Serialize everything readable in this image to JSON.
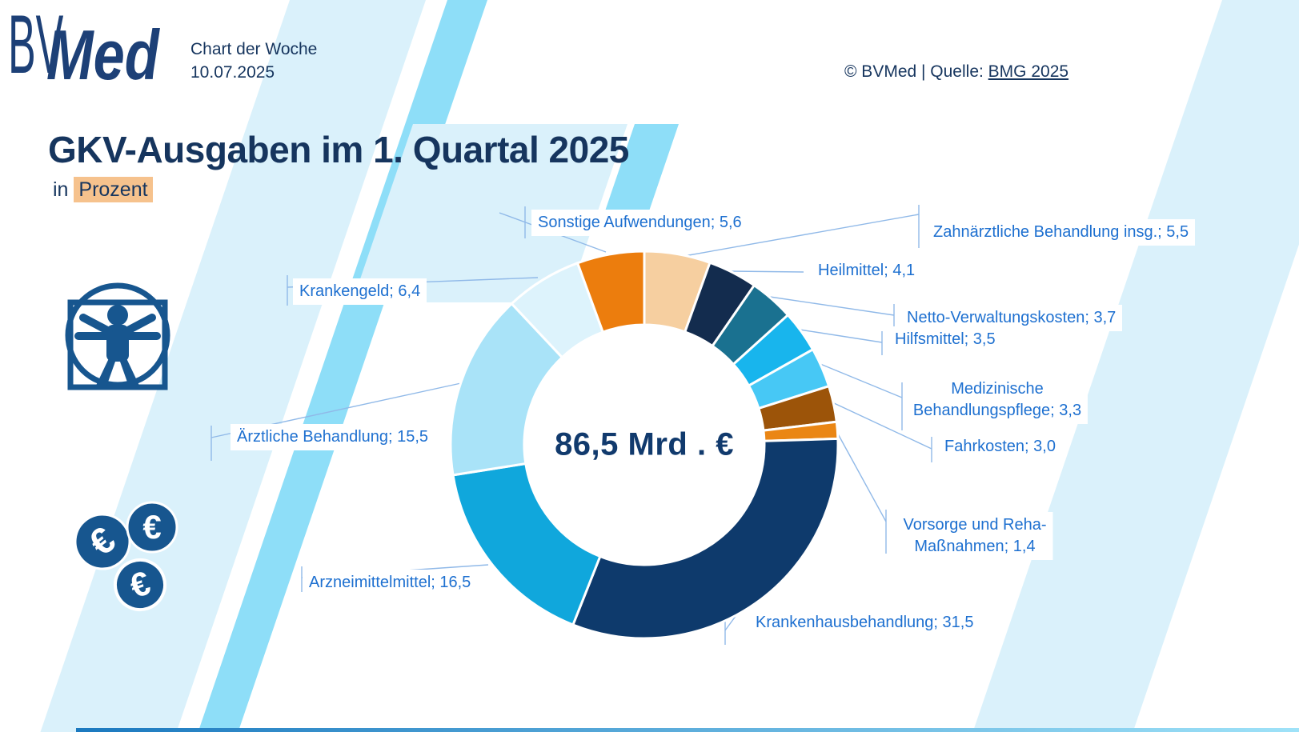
{
  "header": {
    "logo_bv": "BV",
    "logo_med": "Med",
    "tagline": "Chart der Woche",
    "date": "10.07.2025",
    "source_prefix": "© BVMed | Quelle: ",
    "source_link": "BMG 2025"
  },
  "title": "GKV-Ausgaben im 1. Quartal 2025",
  "subtitle_prefix": "in ",
  "subtitle_highlight": "Prozent",
  "chart_data": {
    "type": "pie",
    "donut": true,
    "title": "GKV-Ausgaben im 1. Quartal 2025",
    "unit": "Prozent",
    "center_label": "86,5 Mrd . €",
    "start_angle_deg": 0,
    "direction": "clockwise",
    "total": 100.0,
    "segments": [
      {
        "id": "zahnaerztliche",
        "name": "Zahnärztliche Behandlung insg.",
        "value": 5.5,
        "color": "#f6cfa0"
      },
      {
        "id": "heilmittel",
        "name": "Heilmittel",
        "value": 4.1,
        "color": "#132c4e"
      },
      {
        "id": "netto",
        "name": "Netto-Verwaltungskosten",
        "value": 3.7,
        "color": "#1a7190"
      },
      {
        "id": "hilfsmittel",
        "name": "Hilfsmittel",
        "value": 3.5,
        "color": "#18b5ed"
      },
      {
        "id": "medizinische",
        "name": "Medizinische Behandlungspflege",
        "value": 3.3,
        "color": "#47c8f5"
      },
      {
        "id": "fahrkosten",
        "name": "Fahrkosten",
        "value": 3.0,
        "color": "#9c5409"
      },
      {
        "id": "vorsorge",
        "name": "Vorsorge und Reha-Maßnahmen",
        "value": 1.4,
        "color": "#ea8614"
      },
      {
        "id": "krankenhaus",
        "name": "Krankenhausbehandlung",
        "value": 31.5,
        "color": "#0e3a6c"
      },
      {
        "id": "arzneimittel",
        "name": "Arzneimittelmittel",
        "value": 16.5,
        "color": "#10a7dc"
      },
      {
        "id": "aerztliche",
        "name": "Ärztliche Behandlung",
        "value": 15.5,
        "color": "#a9e3f8"
      },
      {
        "id": "krankengeld",
        "name": "Krankengeld",
        "value": 6.4,
        "color": "#ddf3fc"
      },
      {
        "id": "sonstige",
        "name": "Sonstige Aufwendungen",
        "value": 5.6,
        "color": "#ec7d0d"
      }
    ]
  },
  "icons": [
    "vitruvian-man-icon",
    "euro-coin-icon",
    "euro-coin-icon",
    "euro-coin-icon"
  ],
  "colors": {
    "label_text": "#1e70d0",
    "leader_line": "#90b9e8",
    "navy": "#16355e",
    "logo_blue": "#1d4077",
    "center_text": "#113a6d",
    "highlight_bg": "#f6c28d",
    "stripe_pale": "#daf1fb",
    "stripe_cyan": "#8edef8",
    "icon_blue": "#17568f",
    "slice_gap": "#ffffff",
    "bottom_bar_from": "#1b79bf",
    "bottom_bar_to": "#9fe2f8"
  }
}
